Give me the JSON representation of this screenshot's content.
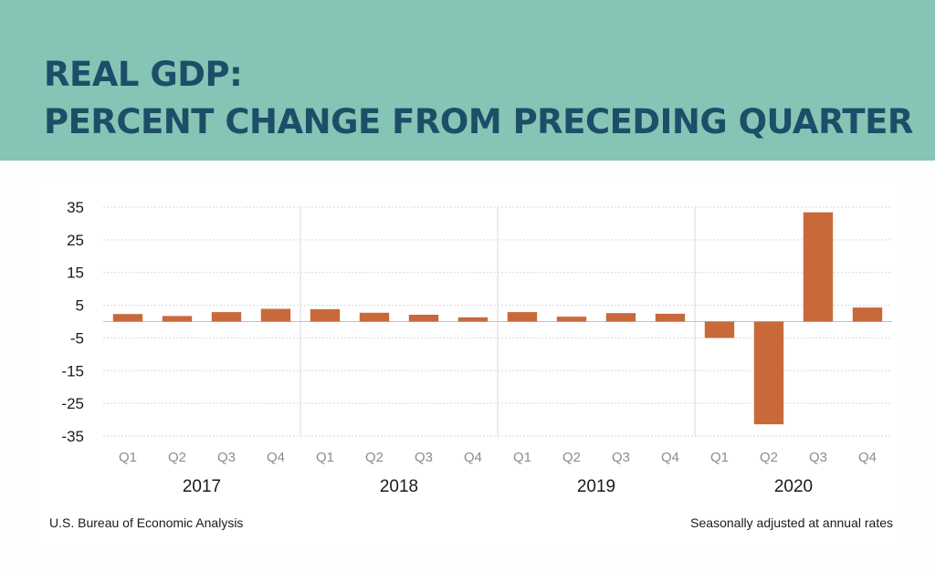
{
  "header": {
    "title_line1": "REAL GDP:",
    "title_line2": "PERCENT CHANGE FROM PRECEDING QUARTER",
    "background_color": "#86c4b5",
    "title_color": "#1d4e68"
  },
  "footer": {
    "source": "U.S. Bureau of Economic Analysis",
    "note": "Seasonally adjusted at annual rates"
  },
  "chart_data": {
    "type": "bar",
    "title": "REAL GDP: PERCENT CHANGE FROM PRECEDING QUARTER",
    "xlabel": "",
    "ylabel": "",
    "ylim": [
      -35,
      35
    ],
    "yticks": [
      35,
      25,
      15,
      5,
      -5,
      -15,
      -25,
      -35
    ],
    "grid": true,
    "bar_color": "#c9693a",
    "groups": [
      {
        "label": "2017",
        "quarters": [
          "Q1",
          "Q2",
          "Q3",
          "Q4"
        ]
      },
      {
        "label": "2018",
        "quarters": [
          "Q1",
          "Q2",
          "Q3",
          "Q4"
        ]
      },
      {
        "label": "2019",
        "quarters": [
          "Q1",
          "Q2",
          "Q3",
          "Q4"
        ]
      },
      {
        "label": "2020",
        "quarters": [
          "Q1",
          "Q2",
          "Q3",
          "Q4"
        ]
      }
    ],
    "categories": [
      "Q1",
      "Q2",
      "Q3",
      "Q4",
      "Q1",
      "Q2",
      "Q3",
      "Q4",
      "Q1",
      "Q2",
      "Q3",
      "Q4",
      "Q1",
      "Q2",
      "Q3",
      "Q4"
    ],
    "values": [
      2.3,
      1.7,
      2.9,
      3.9,
      3.8,
      2.7,
      2.1,
      1.3,
      2.9,
      1.5,
      2.6,
      2.4,
      -5.0,
      -31.4,
      33.4,
      4.3
    ]
  }
}
